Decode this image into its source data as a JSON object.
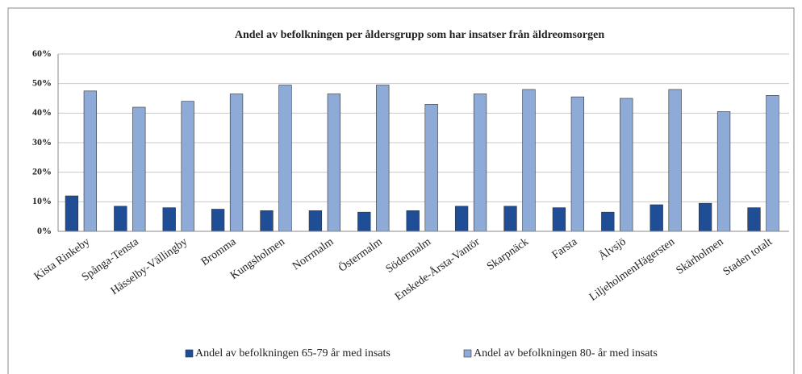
{
  "chart_data": {
    "type": "bar",
    "title": "Andel av befolkningen per åldersgrupp som har insatser från äldreomsorgen",
    "categories": [
      "Kista Rinkeby",
      "Spånga-Tensta",
      "Hässelby-Vällingby",
      "Bromma",
      "Kungsholmen",
      "Norrmalm",
      "Östermalm",
      "Södermalm",
      "Enskede-Årsta-Vantör",
      "Skarpnäck",
      "Farsta",
      "Älvsjö",
      "LiljeholmenHägersten",
      "Skärholmen",
      "Staden totalt"
    ],
    "series": [
      {
        "name": "Andel av befolkningen 65-79 år med insats",
        "color": "#1f4e96",
        "values": [
          12,
          8.5,
          8,
          7.5,
          7,
          7,
          6.5,
          7,
          8.5,
          8.5,
          8,
          6.5,
          9,
          9.5,
          8
        ]
      },
      {
        "name": "Andel av befolkningen 80- år med insats",
        "color": "#8eaad6",
        "values": [
          47.5,
          42,
          44,
          46.5,
          49.5,
          46.5,
          49.5,
          43,
          46.5,
          48,
          45.5,
          45,
          48,
          40.5,
          46
        ]
      }
    ],
    "ylim": [
      0,
      60
    ],
    "yticks": [
      {
        "value": 0,
        "label": "0%"
      },
      {
        "value": 10,
        "label": "10%"
      },
      {
        "value": 20,
        "label": "20%"
      },
      {
        "value": 30,
        "label": "30%"
      },
      {
        "value": 40,
        "label": "40%"
      },
      {
        "value": 50,
        "label": "50%"
      },
      {
        "value": 60,
        "label": "60%"
      }
    ],
    "grid": true,
    "legend": "bottom"
  }
}
